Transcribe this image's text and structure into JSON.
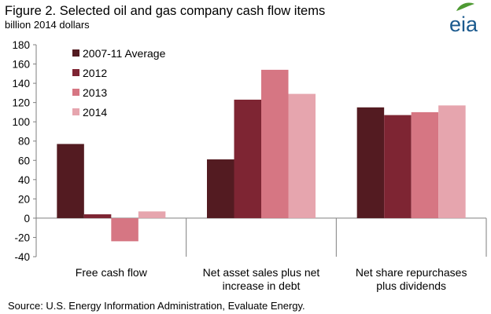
{
  "header": {
    "title": "Figure 2.  Selected oil and gas company cash flow items",
    "subtitle": "billion 2014 dollars",
    "logo_text": "eia"
  },
  "footer": {
    "source": "Source:  U.S. Energy Information Administration, Evaluate Energy."
  },
  "colors": {
    "series": [
      "#531b21",
      "#7e2533",
      "#d67683",
      "#e6a5ae"
    ],
    "axis": "#7f7f7f",
    "logo": "#1b5a8e",
    "logo_leaf": "#4e9a33"
  },
  "chart_data": {
    "type": "bar",
    "title": "Figure 2.  Selected oil and gas company cash flow items",
    "ylabel": "",
    "xlabel": "",
    "units": "billion 2014 dollars",
    "ylim": [
      -40,
      180
    ],
    "yticks": [
      -40,
      -20,
      0,
      20,
      40,
      60,
      80,
      100,
      120,
      140,
      160,
      180
    ],
    "grid": false,
    "legend_position": "top-left",
    "categories": [
      [
        "Free cash flow"
      ],
      [
        "Net asset sales plus net",
        "increase in debt"
      ],
      [
        "Net share repurchases",
        "plus dividends"
      ]
    ],
    "series": [
      {
        "name": "2007-11 Average",
        "values": [
          77,
          61,
          115
        ]
      },
      {
        "name": "2012",
        "values": [
          4,
          123,
          107
        ]
      },
      {
        "name": "2013",
        "values": [
          -24,
          154,
          110
        ]
      },
      {
        "name": "2014",
        "values": [
          7,
          129,
          117
        ]
      }
    ]
  }
}
